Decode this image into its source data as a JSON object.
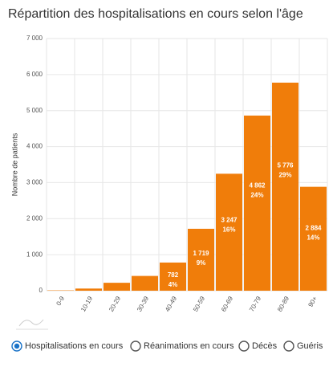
{
  "chart_data": {
    "type": "bar",
    "title": "Répartition des hospitalisations en cours selon l'âge",
    "y_label": "Nombre de patients",
    "categories": [
      "0-9",
      "10-19",
      "20-29",
      "30-39",
      "40-49",
      "50-59",
      "60-69",
      "70-79",
      "80-89",
      "90+"
    ],
    "values": [
      10,
      60,
      220,
      410,
      782,
      1719,
      3247,
      4862,
      5776,
      2884
    ],
    "value_labels": [
      null,
      null,
      null,
      null,
      "782",
      "1 719",
      "3 247",
      "4 862",
      "5 776",
      "2 884"
    ],
    "share_labels": [
      null,
      null,
      null,
      null,
      "4%",
      "9%",
      "16%",
      "24%",
      "29%",
      "14%"
    ],
    "color": "#f07d0a",
    "ylim": [
      0,
      7000
    ],
    "yticks": [
      0,
      {
        "value": 1000,
        "label": "1 000"
      },
      {
        "value": 2000,
        "label": "2 000"
      },
      {
        "value": 3000,
        "label": "3 000"
      },
      {
        "value": 4000,
        "label": "4 000"
      },
      {
        "value": 5000,
        "label": "5 000"
      },
      {
        "value": 6000,
        "label": "6 000"
      },
      {
        "value": 7000,
        "label": "7 000"
      }
    ],
    "grid": true
  },
  "options": {
    "items": [
      "Hospitalisations en cours",
      "Réanimations en cours",
      "Décès",
      "Guéris"
    ],
    "selected": 0
  }
}
